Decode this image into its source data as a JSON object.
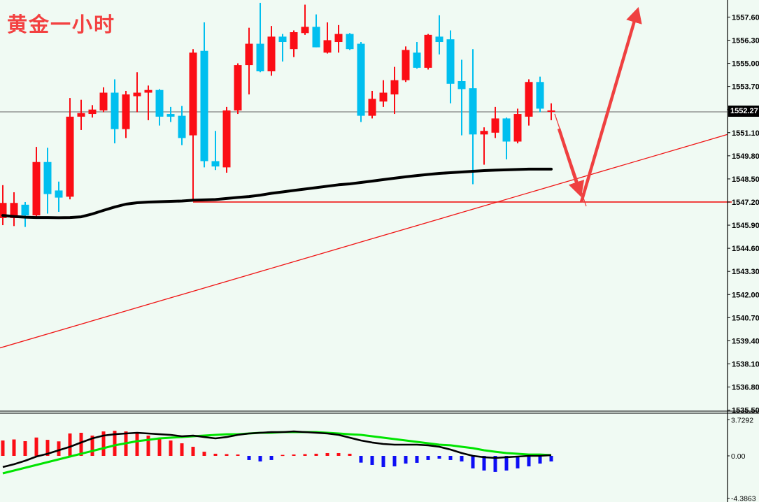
{
  "title": "黄金一小时",
  "price_badge": "1552.27",
  "colors": {
    "background": "#f0faf3",
    "bull_candle": "#fb0d15",
    "bear_candle": "#00bfef",
    "ma_line": "#000000",
    "macd_main": "#000000",
    "macd_signal": "#00e400",
    "hist_positive": "#fb0d15",
    "hist_negative": "#0d0df5",
    "annotation_red": "#ef4040",
    "trendline_red": "#f01515",
    "grid_gray": "#808080",
    "axis_line": "#000000",
    "axis_text": "#000000",
    "badge_bg": "#000000",
    "badge_text": "#ffffff",
    "title_red": "#f34141"
  },
  "price_axis": {
    "labels": [
      "1557.60",
      "1556.30",
      "1555.00",
      "1553.70",
      "1552.40",
      "1551.10",
      "1549.80",
      "1548.50",
      "1547.20",
      "1545.90",
      "1544.60",
      "1543.30",
      "1542.00",
      "1540.70",
      "1539.40",
      "1538.10",
      "1536.80",
      "1535.50"
    ]
  },
  "indicator_axis": {
    "labels": [
      "3.7292",
      "0.00",
      "-4.3863"
    ]
  },
  "chart_data": {
    "type": "candlestick",
    "title": "黄金一小时",
    "timeframe": "1H",
    "current_price": 1552.27,
    "price_range_visible": [
      1535.5,
      1558.4
    ],
    "indicator_range": [
      -4.3863,
      3.7292
    ],
    "candles": [
      [
        1546.3,
        1548.15,
        1545.9,
        1547.15
      ],
      [
        1546.3,
        1547.75,
        1545.85,
        1547.15
      ],
      [
        1547.05,
        1547.2,
        1545.8,
        1546.45
      ],
      [
        1546.45,
        1550.3,
        1546.35,
        1549.45
      ],
      [
        1549.45,
        1550.25,
        1546.55,
        1547.65
      ],
      [
        1547.85,
        1548.35,
        1546.65,
        1547.45
      ],
      [
        1547.5,
        1553.05,
        1547.35,
        1552.0
      ],
      [
        1552.0,
        1552.95,
        1551.25,
        1552.2
      ],
      [
        1552.15,
        1552.65,
        1551.95,
        1552.4
      ],
      [
        1552.35,
        1553.65,
        1552.25,
        1553.35
      ],
      [
        1553.35,
        1554.1,
        1550.5,
        1551.3
      ],
      [
        1551.3,
        1553.45,
        1550.8,
        1553.25
      ],
      [
        1553.15,
        1554.5,
        1552.25,
        1553.35
      ],
      [
        1553.35,
        1553.75,
        1551.8,
        1553.5
      ],
      [
        1553.5,
        1553.55,
        1551.5,
        1552.0
      ],
      [
        1552.15,
        1552.55,
        1551.7,
        1552.0
      ],
      [
        1552.05,
        1552.6,
        1550.4,
        1550.8
      ],
      [
        1550.95,
        1555.8,
        1547.25,
        1555.6
      ],
      [
        1555.7,
        1557.3,
        1549.15,
        1549.5
      ],
      [
        1549.5,
        1551.2,
        1549.0,
        1549.2
      ],
      [
        1549.15,
        1552.55,
        1548.85,
        1552.35
      ],
      [
        1552.35,
        1555.0,
        1552.15,
        1554.9
      ],
      [
        1554.9,
        1557.0,
        1553.25,
        1556.1
      ],
      [
        1556.1,
        1558.4,
        1554.5,
        1554.55
      ],
      [
        1554.55,
        1557.1,
        1554.3,
        1556.5
      ],
      [
        1556.5,
        1556.65,
        1555.1,
        1556.2
      ],
      [
        1555.8,
        1556.85,
        1555.35,
        1556.75
      ],
      [
        1556.7,
        1558.3,
        1556.6,
        1557.05
      ],
      [
        1557.05,
        1557.75,
        1555.9,
        1555.9
      ],
      [
        1555.6,
        1557.3,
        1555.55,
        1556.3
      ],
      [
        1556.2,
        1557.15,
        1555.6,
        1556.65
      ],
      [
        1556.65,
        1556.7,
        1555.75,
        1555.8
      ],
      [
        1556.1,
        1556.2,
        1551.7,
        1552.05
      ],
      [
        1552.05,
        1553.45,
        1551.9,
        1553.0
      ],
      [
        1552.85,
        1554.05,
        1552.55,
        1553.35
      ],
      [
        1553.25,
        1554.8,
        1552.15,
        1554.05
      ],
      [
        1554.05,
        1555.95,
        1553.95,
        1555.75
      ],
      [
        1555.6,
        1556.2,
        1554.7,
        1554.75
      ],
      [
        1554.75,
        1556.65,
        1554.65,
        1556.6
      ],
      [
        1556.5,
        1557.7,
        1555.5,
        1556.2
      ],
      [
        1556.35,
        1556.85,
        1552.75,
        1553.85
      ],
      [
        1554.0,
        1555.2,
        1550.95,
        1553.55
      ],
      [
        1553.6,
        1555.8,
        1548.2,
        1551.0
      ],
      [
        1551.0,
        1551.4,
        1549.3,
        1551.2
      ],
      [
        1551.1,
        1552.55,
        1550.8,
        1551.9
      ],
      [
        1551.9,
        1551.95,
        1549.6,
        1550.6
      ],
      [
        1550.6,
        1552.45,
        1550.5,
        1552.15
      ],
      [
        1552.0,
        1554.1,
        1551.5,
        1553.95
      ],
      [
        1553.95,
        1554.25,
        1552.25,
        1552.45
      ],
      [
        1552.27,
        1552.75,
        1551.8,
        1552.35
      ]
    ],
    "ma": [
      1546.45,
      1546.39,
      1546.35,
      1546.33,
      1546.33,
      1546.32,
      1546.33,
      1546.37,
      1546.53,
      1546.73,
      1546.92,
      1547.08,
      1547.16,
      1547.2,
      1547.22,
      1547.24,
      1547.26,
      1547.3,
      1547.32,
      1547.34,
      1547.4,
      1547.46,
      1547.51,
      1547.59,
      1547.69,
      1547.77,
      1547.85,
      1547.93,
      1548.01,
      1548.09,
      1548.17,
      1548.22,
      1548.3,
      1548.38,
      1548.46,
      1548.54,
      1548.62,
      1548.69,
      1548.75,
      1548.81,
      1548.85,
      1548.89,
      1548.93,
      1548.97,
      1548.99,
      1549.01,
      1549.03,
      1549.05,
      1549.05,
      1549.05
    ],
    "macd": {
      "main": [
        -1.16,
        -0.87,
        -0.51,
        -0.07,
        0.22,
        0.58,
        0.94,
        1.38,
        1.81,
        2.1,
        2.24,
        2.32,
        2.39,
        2.32,
        2.24,
        2.17,
        2.03,
        2.1,
        1.95,
        1.81,
        1.95,
        2.17,
        2.32,
        2.39,
        2.46,
        2.46,
        2.53,
        2.46,
        2.39,
        2.32,
        2.17,
        1.88,
        1.59,
        1.38,
        1.23,
        1.16,
        1.16,
        1.16,
        1.09,
        0.94,
        0.65,
        0.29,
        0.0,
        -0.14,
        -0.22,
        -0.14,
        -0.07,
        0.0,
        0.0,
        0.07
      ],
      "signal": [
        -1.81,
        -1.52,
        -1.23,
        -0.94,
        -0.65,
        -0.36,
        -0.07,
        0.22,
        0.51,
        0.8,
        1.09,
        1.3,
        1.52,
        1.66,
        1.81,
        1.88,
        1.95,
        2.03,
        2.1,
        2.17,
        2.24,
        2.24,
        2.32,
        2.39,
        2.39,
        2.46,
        2.46,
        2.46,
        2.46,
        2.39,
        2.32,
        2.24,
        2.17,
        2.03,
        1.88,
        1.74,
        1.59,
        1.45,
        1.3,
        1.16,
        1.09,
        0.94,
        0.8,
        0.58,
        0.43,
        0.29,
        0.22,
        0.14,
        0.14,
        0.07
      ],
      "histogram": [
        1.59,
        1.7,
        1.52,
        1.9,
        1.66,
        1.5,
        2.32,
        2.39,
        2.1,
        2.53,
        2.6,
        2.53,
        2.39,
        2.1,
        1.81,
        1.59,
        1.3,
        0.94,
        0.43,
        0.22,
        0.18,
        0.14,
        -0.43,
        -0.58,
        -0.43,
        0.1,
        0.14,
        0.18,
        0.22,
        0.29,
        0.29,
        0.22,
        -0.7,
        -0.94,
        -1.16,
        -1.09,
        -0.8,
        -0.72,
        -0.43,
        -0.29,
        -0.43,
        -0.58,
        -1.3,
        -1.52,
        -1.66,
        -1.52,
        -1.3,
        -1.09,
        -0.8,
        -0.58
      ],
      "scale_max": "3.7292",
      "scale_zero": "0.00",
      "scale_min": "-4.3863"
    },
    "levels": {
      "current_price_line": 1552.27,
      "support_line": 1547.2
    },
    "trendline": {
      "price_at_left": 1539.0,
      "price_at_right": 1551.0
    },
    "projection": {
      "pullback_target": 1547.2,
      "rally_target": 1558.2
    }
  }
}
